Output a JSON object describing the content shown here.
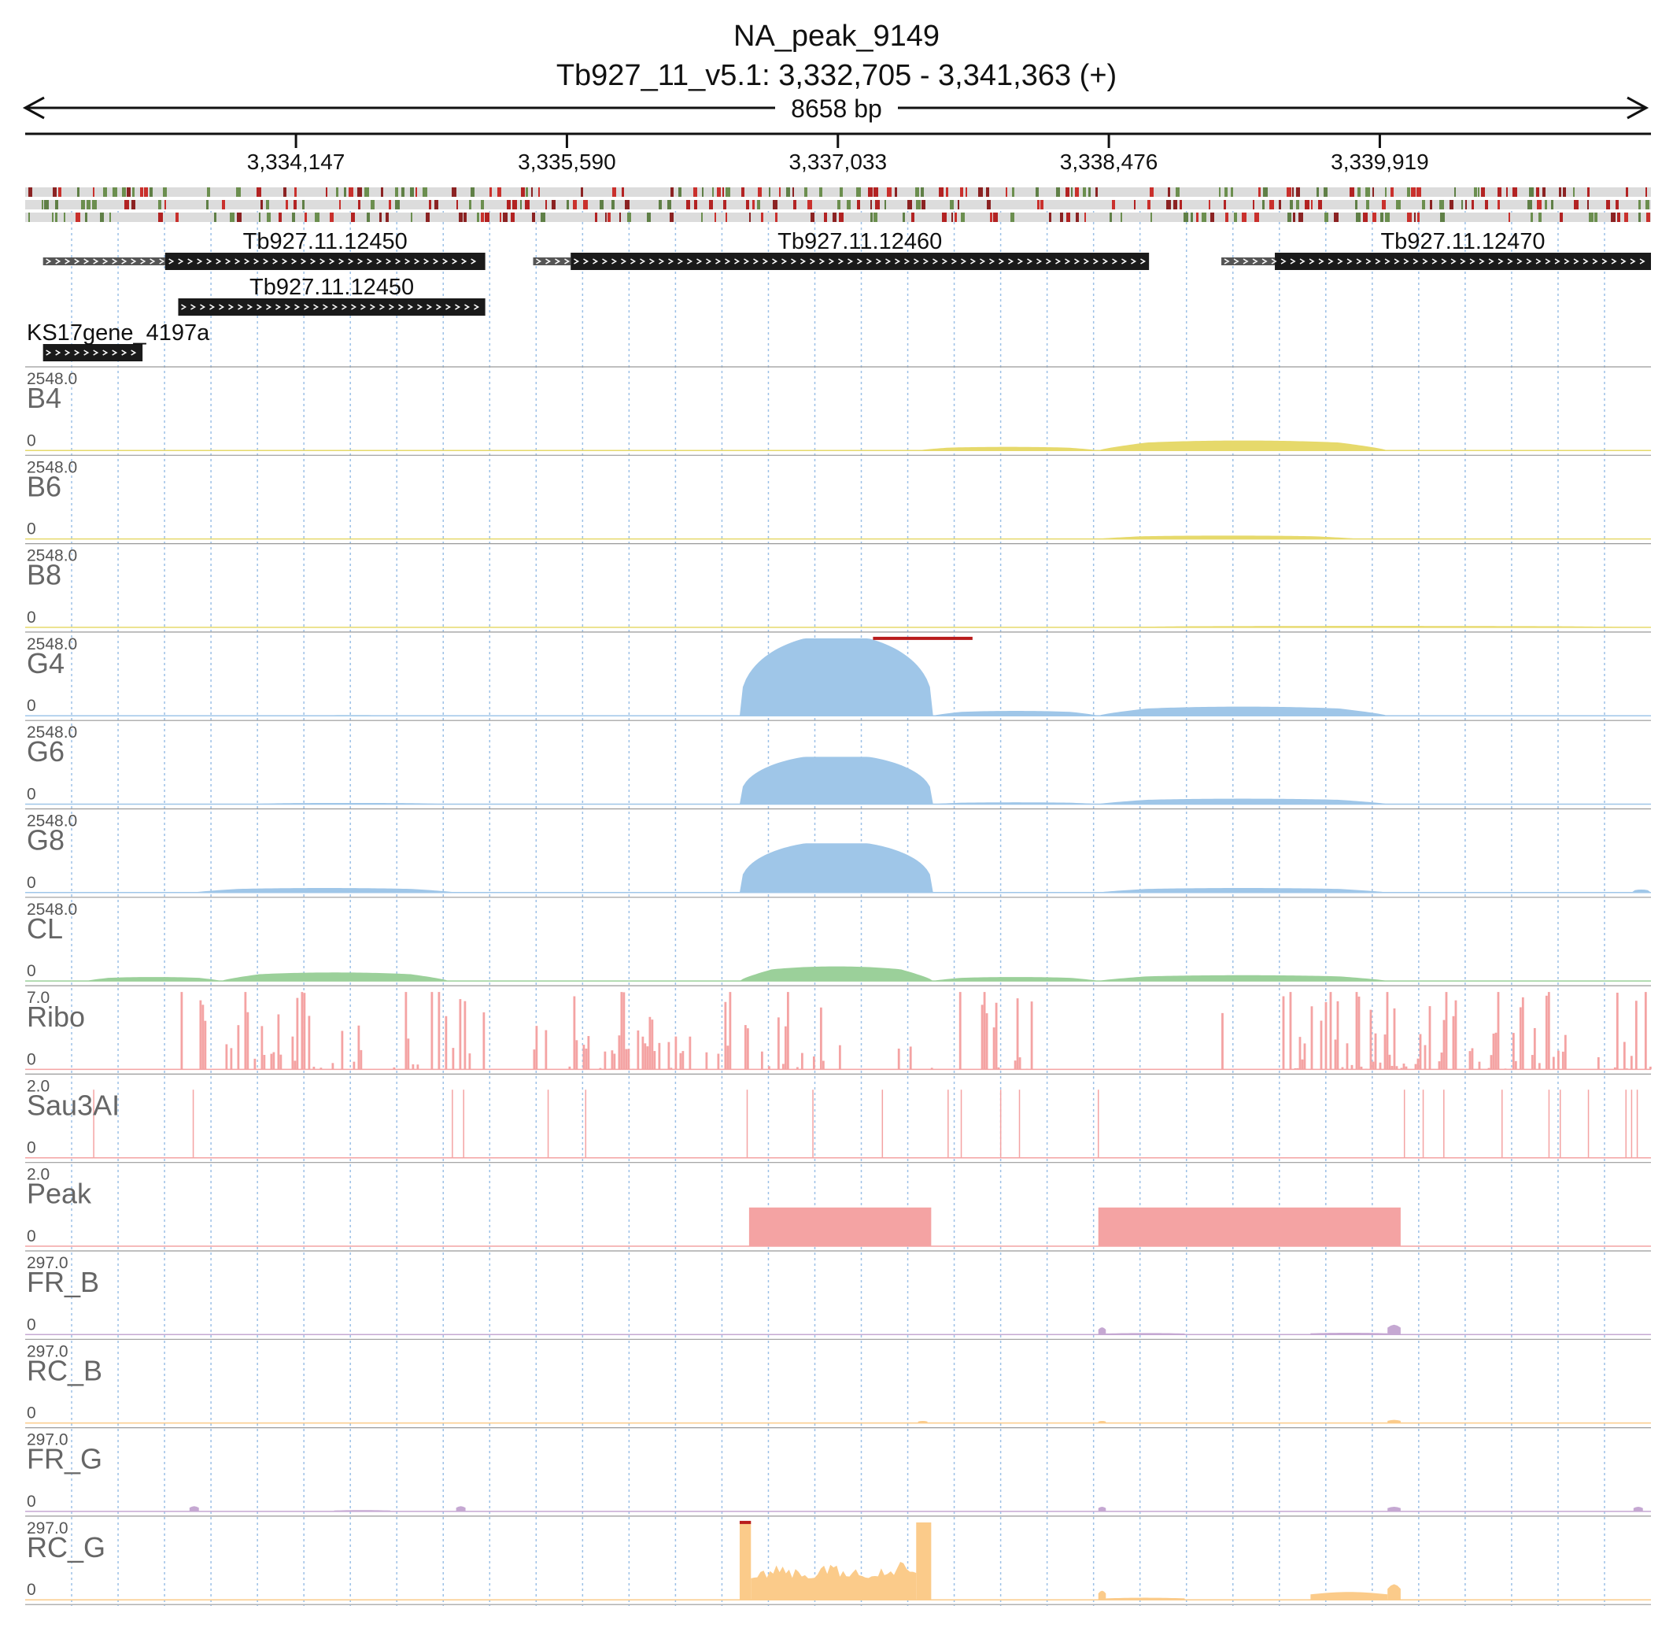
{
  "title": "NA_peak_9149",
  "subtitle": "Tb927_11_v5.1: 3,332,705 - 3,341,363 (+)",
  "span_label": "8658 bp",
  "colors": {
    "yellow": "#e6d96b",
    "blue": "#9fc6e8",
    "green": "#9bd09a",
    "red": "#f4a3a3",
    "purple": "#c5a8d2",
    "orange": "#fbcb8a",
    "gene": "#1a1a1a",
    "utr": "#555555",
    "grid": "#9cc0e6",
    "clip": "#b81c1c"
  },
  "chart_data": {
    "type": "area",
    "genome_region": {
      "chrom": "Tb927_11_v5.1",
      "start": 3332705,
      "end": 3341363,
      "strand": "+"
    },
    "ticks": [
      {
        "pos": 3334147,
        "label": "3,334,147"
      },
      {
        "pos": 3335590,
        "label": "3,335,590"
      },
      {
        "pos": 3337033,
        "label": "3,337,033"
      },
      {
        "pos": 3338476,
        "label": "3,338,476"
      },
      {
        "pos": 3339919,
        "label": "3,339,919"
      }
    ],
    "genes": [
      {
        "name": "Tb927.11.12450",
        "row": 0,
        "utr_start": 3332800,
        "cds_start": 3333450,
        "end": 3335155
      },
      {
        "name": "Tb927.11.12460",
        "row": 0,
        "utr_start": 3335410,
        "cds_start": 3335610,
        "end": 3338690
      },
      {
        "name": "Tb927.11.12470",
        "row": 0,
        "utr_start": 3339075,
        "cds_start": 3339360,
        "end": 3341363
      },
      {
        "name": "Tb927.11.12450",
        "row": 1,
        "utr_start": 3333520,
        "cds_start": 3333520,
        "end": 3335155
      },
      {
        "name": "KS17gene_4197a",
        "row": 2,
        "utr_start": 3332800,
        "cds_start": 3332800,
        "end": 3333330
      }
    ],
    "tracks": [
      {
        "name": "B4",
        "max": "2548.0",
        "min": "0",
        "ymax": 2548,
        "color": "yellow",
        "kind": "coverage",
        "segments": [
          [
            3337460,
            3338420,
            120
          ],
          [
            3338420,
            3339960,
            330
          ]
        ]
      },
      {
        "name": "B6",
        "max": "2548.0",
        "min": "0",
        "ymax": 2548,
        "color": "yellow",
        "kind": "coverage",
        "segments": [
          [
            3338420,
            3339800,
            110
          ]
        ]
      },
      {
        "name": "B8",
        "max": "2548.0",
        "min": "0",
        "ymax": 2548,
        "color": "yellow",
        "kind": "coverage",
        "segments": [
          [
            3338420,
            3341363,
            45
          ]
        ]
      },
      {
        "name": "G4",
        "max": "2548.0",
        "min": "0",
        "ymax": 2548,
        "color": "blue",
        "kind": "coverage",
        "segments": [
          [
            3333900,
            3335000,
            20
          ],
          [
            3336510,
            3337540,
            2548
          ],
          [
            3337540,
            3338420,
            160
          ],
          [
            3338420,
            3339960,
            300
          ]
        ],
        "clip": [
          3337220,
          3337750
        ]
      },
      {
        "name": "G6",
        "max": "2548.0",
        "min": "0",
        "ymax": 2548,
        "color": "blue",
        "kind": "coverage",
        "segments": [
          [
            3333900,
            3334950,
            40
          ],
          [
            3336510,
            3337540,
            1560
          ],
          [
            3337540,
            3338420,
            60
          ],
          [
            3338420,
            3339960,
            180
          ]
        ]
      },
      {
        "name": "G8",
        "max": "2548.0",
        "min": "0",
        "ymax": 2548,
        "color": "blue",
        "kind": "coverage",
        "segments": [
          [
            3333600,
            3335000,
            150
          ],
          [
            3336510,
            3337540,
            1620
          ],
          [
            3338420,
            3339960,
            150
          ],
          [
            3341260,
            3341363,
            100
          ]
        ]
      },
      {
        "name": "CL",
        "max": "2548.0",
        "min": "0",
        "ymax": 2548,
        "color": "green",
        "kind": "coverage",
        "segments": [
          [
            3333030,
            3333750,
            130
          ],
          [
            3333750,
            3334960,
            280
          ],
          [
            3336510,
            3337540,
            480
          ],
          [
            3337540,
            3338420,
            130
          ],
          [
            3338420,
            3339960,
            190
          ]
        ]
      },
      {
        "name": "Ribo",
        "max": "7.0",
        "min": "0",
        "ymax": 7,
        "color": "red",
        "kind": "bars",
        "regions": [
          [
            3333520,
            3335150,
            0.35
          ],
          [
            3335410,
            3336480,
            0.45
          ],
          [
            3336510,
            3337050,
            0.3
          ],
          [
            3337050,
            3337720,
            0.2
          ],
          [
            3337720,
            3338060,
            0.2
          ],
          [
            3339050,
            3339400,
            0.05
          ],
          [
            3339400,
            3340600,
            0.6
          ],
          [
            3340600,
            3341363,
            0.45
          ]
        ]
      },
      {
        "name": "Sau3AI",
        "max": "2.0",
        "min": "0",
        "ymax": 2,
        "color": "red",
        "kind": "lines",
        "positions": [
          3333070,
          3333600,
          3334980,
          3335040,
          3335490,
          3335690,
          3336550,
          3336900,
          3337270,
          3337620,
          3337690,
          3337900,
          3338000,
          3338420,
          3340050,
          3340150,
          3340260,
          3340570,
          3340820,
          3340880,
          3341030,
          3341230,
          3341260,
          3341290
        ]
      },
      {
        "name": "Peak",
        "max": "2.0",
        "min": "0",
        "ymax": 2,
        "color": "red",
        "kind": "peaks",
        "segments": [
          [
            3336560,
            3337530,
            1.0
          ],
          [
            3338420,
            3340030,
            1.0
          ]
        ]
      },
      {
        "name": "FR_B",
        "max": "297.0",
        "min": "0",
        "ymax": 297,
        "color": "purple",
        "kind": "stranded",
        "segments": [
          [
            3338420,
            3338460,
            28
          ],
          [
            3338460,
            3338880,
            6
          ],
          [
            3339550,
            3339960,
            7
          ],
          [
            3339960,
            3340030,
            38
          ]
        ]
      },
      {
        "name": "RC_B",
        "max": "297.0",
        "min": "0",
        "ymax": 297,
        "color": "orange",
        "kind": "stranded",
        "segments": [
          [
            3337460,
            3337510,
            8
          ],
          [
            3338420,
            3338460,
            8
          ],
          [
            3339960,
            3340030,
            12
          ]
        ]
      },
      {
        "name": "FR_G",
        "max": "297.0",
        "min": "0",
        "ymax": 297,
        "color": "purple",
        "kind": "stranded",
        "segments": [
          [
            3333580,
            3333630,
            20
          ],
          [
            3334350,
            3334650,
            5
          ],
          [
            3335000,
            3335050,
            20
          ],
          [
            3338420,
            3338460,
            18
          ],
          [
            3339960,
            3340030,
            18
          ],
          [
            3341270,
            3341320,
            18
          ]
        ]
      },
      {
        "name": "RC_G",
        "max": "297.0",
        "min": "0",
        "ymax": 297,
        "color": "orange",
        "kind": "stranded",
        "segments": [
          [
            3336510,
            3336570,
            297
          ],
          [
            3336570,
            3337450,
            150
          ],
          [
            3337450,
            3337530,
            297
          ],
          [
            3338420,
            3338460,
            35
          ],
          [
            3338460,
            3338880,
            8
          ],
          [
            3339550,
            3339960,
            30
          ],
          [
            3339960,
            3340030,
            60
          ]
        ],
        "clip": [
          3336510,
          3336570
        ]
      }
    ]
  }
}
